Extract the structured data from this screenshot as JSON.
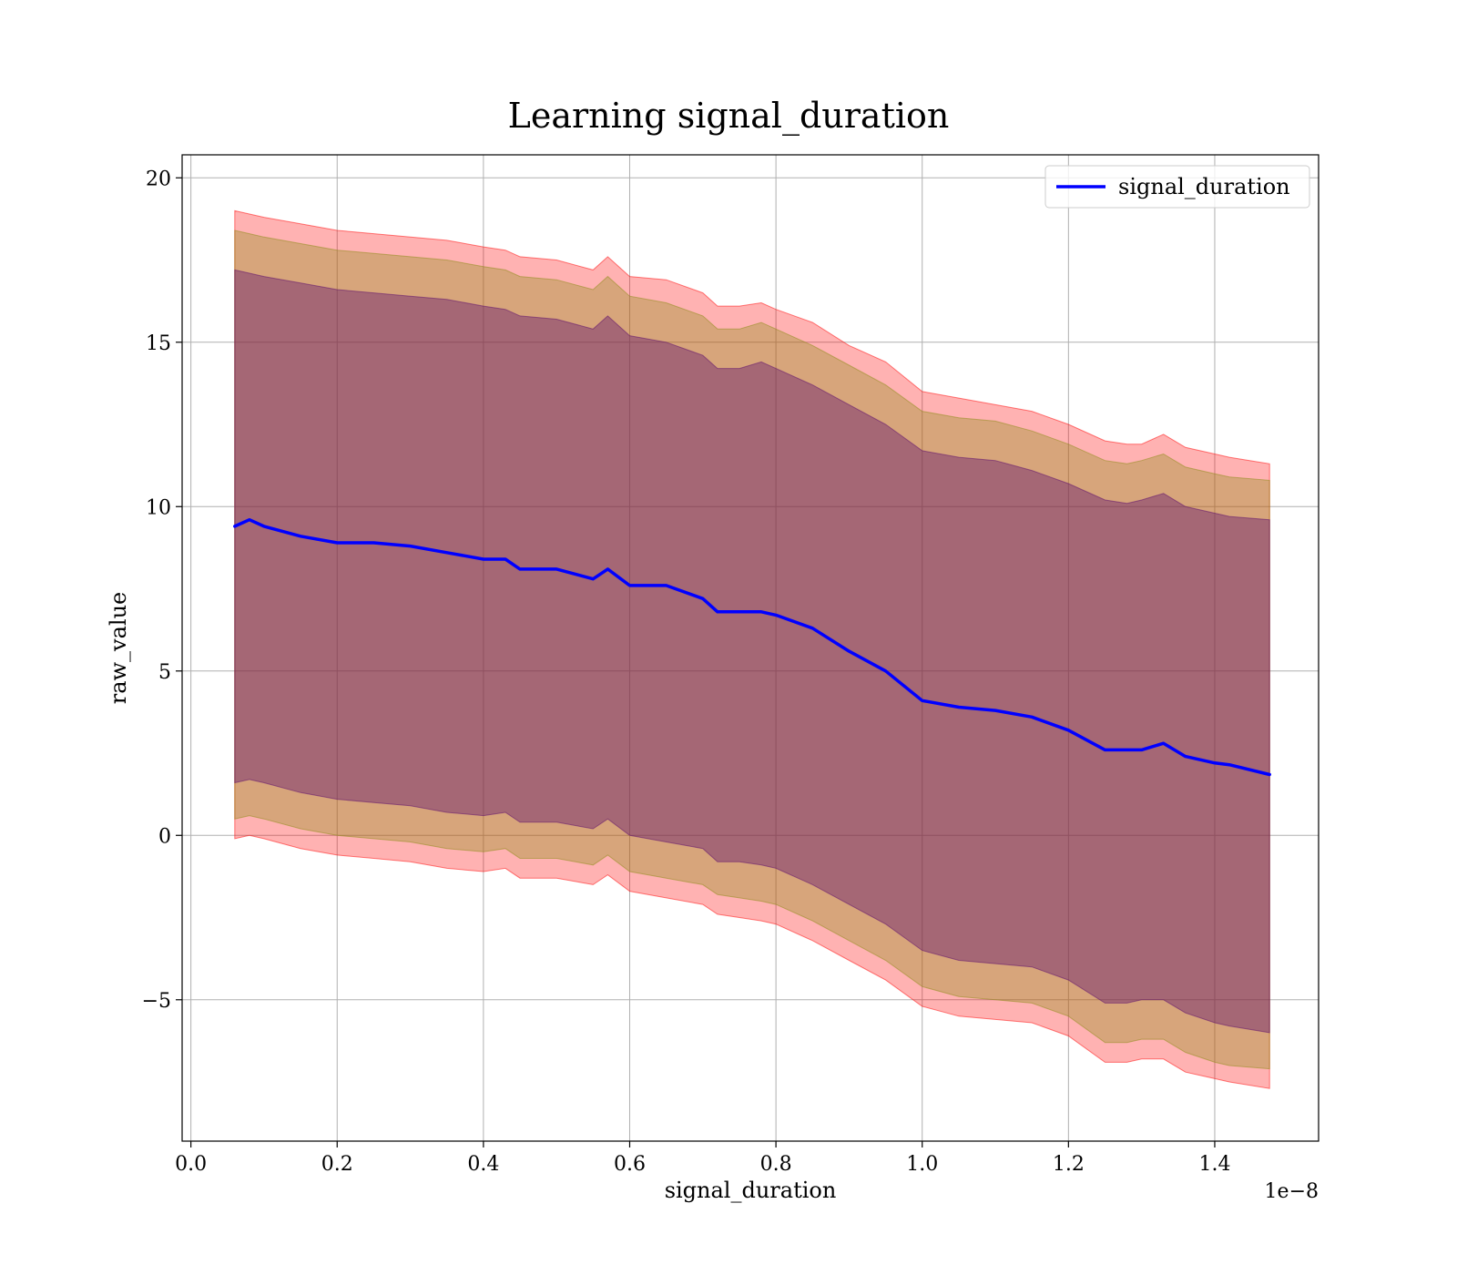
{
  "chart_data": {
    "type": "line",
    "title": "Learning signal_duration",
    "xlabel": "signal_duration",
    "ylabel": "raw_value",
    "x_offset_label": "1e−8",
    "xlim": [
      -0.012,
      1.542
    ],
    "ylim": [
      -9.3,
      20.7
    ],
    "x_ticks": [
      0.0,
      0.2,
      0.4,
      0.6,
      0.8,
      1.0,
      1.2,
      1.4
    ],
    "x_tick_labels": [
      "0.0",
      "0.2",
      "0.4",
      "0.6",
      "0.8",
      "1.0",
      "1.2",
      "1.4"
    ],
    "y_ticks": [
      -5,
      0,
      5,
      10,
      15,
      20
    ],
    "y_tick_labels": [
      "−5",
      "0",
      "5",
      "10",
      "15",
      "20"
    ],
    "grid": true,
    "legend": {
      "position": "top-right",
      "entries": [
        "signal_duration"
      ]
    },
    "colors": {
      "line": "#0000ff",
      "band_outer": "#ff0000",
      "band_middle": "#8c8c14",
      "band_inner": "#5a0a6e"
    },
    "x": [
      0.06,
      0.08,
      0.1,
      0.15,
      0.2,
      0.25,
      0.3,
      0.35,
      0.4,
      0.43,
      0.45,
      0.5,
      0.55,
      0.57,
      0.6,
      0.65,
      0.7,
      0.72,
      0.75,
      0.78,
      0.8,
      0.85,
      0.9,
      0.95,
      1.0,
      1.05,
      1.1,
      1.15,
      1.2,
      1.25,
      1.28,
      1.3,
      1.33,
      1.36,
      1.4,
      1.42,
      1.475
    ],
    "series": [
      {
        "name": "signal_duration",
        "values": [
          9.4,
          9.6,
          9.4,
          9.1,
          8.9,
          8.9,
          8.8,
          8.6,
          8.4,
          8.4,
          8.1,
          8.1,
          7.8,
          8.1,
          7.6,
          7.6,
          7.2,
          6.8,
          6.8,
          6.8,
          6.7,
          6.3,
          5.6,
          5.0,
          4.1,
          3.9,
          3.8,
          3.6,
          3.2,
          2.6,
          2.6,
          2.6,
          2.8,
          2.4,
          2.2,
          2.15,
          1.85
        ]
      }
    ],
    "bands": [
      {
        "level": "outer",
        "upper": [
          19.0,
          18.9,
          18.8,
          18.6,
          18.4,
          18.3,
          18.2,
          18.1,
          17.9,
          17.8,
          17.6,
          17.5,
          17.2,
          17.6,
          17.0,
          16.9,
          16.5,
          16.1,
          16.1,
          16.2,
          16.0,
          15.6,
          14.9,
          14.4,
          13.5,
          13.3,
          13.1,
          12.9,
          12.5,
          12.0,
          11.9,
          11.9,
          12.2,
          11.8,
          11.6,
          11.5,
          11.3
        ],
        "lower": [
          -0.1,
          0.0,
          -0.1,
          -0.4,
          -0.6,
          -0.7,
          -0.8,
          -1.0,
          -1.1,
          -1.0,
          -1.3,
          -1.3,
          -1.5,
          -1.2,
          -1.7,
          -1.9,
          -2.1,
          -2.4,
          -2.5,
          -2.6,
          -2.7,
          -3.2,
          -3.8,
          -4.4,
          -5.2,
          -5.5,
          -5.6,
          -5.7,
          -6.1,
          -6.9,
          -6.9,
          -6.8,
          -6.8,
          -7.2,
          -7.4,
          -7.5,
          -7.7
        ]
      },
      {
        "level": "middle",
        "upper": [
          18.4,
          18.3,
          18.2,
          18.0,
          17.8,
          17.7,
          17.6,
          17.5,
          17.3,
          17.2,
          17.0,
          16.9,
          16.6,
          17.0,
          16.4,
          16.2,
          15.8,
          15.4,
          15.4,
          15.6,
          15.4,
          14.9,
          14.3,
          13.7,
          12.9,
          12.7,
          12.6,
          12.3,
          11.9,
          11.4,
          11.3,
          11.4,
          11.6,
          11.2,
          11.0,
          10.9,
          10.8
        ],
        "lower": [
          0.5,
          0.6,
          0.5,
          0.2,
          0.0,
          -0.1,
          -0.2,
          -0.4,
          -0.5,
          -0.4,
          -0.7,
          -0.7,
          -0.9,
          -0.6,
          -1.1,
          -1.3,
          -1.5,
          -1.8,
          -1.9,
          -2.0,
          -2.1,
          -2.6,
          -3.2,
          -3.8,
          -4.6,
          -4.9,
          -5.0,
          -5.1,
          -5.5,
          -6.3,
          -6.3,
          -6.2,
          -6.2,
          -6.6,
          -6.9,
          -7.0,
          -7.1
        ]
      },
      {
        "level": "inner",
        "upper": [
          17.2,
          17.1,
          17.0,
          16.8,
          16.6,
          16.5,
          16.4,
          16.3,
          16.1,
          16.0,
          15.8,
          15.7,
          15.4,
          15.8,
          15.2,
          15.0,
          14.6,
          14.2,
          14.2,
          14.4,
          14.2,
          13.7,
          13.1,
          12.5,
          11.7,
          11.5,
          11.4,
          11.1,
          10.7,
          10.2,
          10.1,
          10.2,
          10.4,
          10.0,
          9.8,
          9.7,
          9.6
        ],
        "lower": [
          1.6,
          1.7,
          1.6,
          1.3,
          1.1,
          1.0,
          0.9,
          0.7,
          0.6,
          0.7,
          0.4,
          0.4,
          0.2,
          0.5,
          0.0,
          -0.2,
          -0.4,
          -0.8,
          -0.8,
          -0.9,
          -1.0,
          -1.5,
          -2.1,
          -2.7,
          -3.5,
          -3.8,
          -3.9,
          -4.0,
          -4.4,
          -5.1,
          -5.1,
          -5.0,
          -5.0,
          -5.4,
          -5.7,
          -5.8,
          -6.0
        ]
      }
    ]
  }
}
